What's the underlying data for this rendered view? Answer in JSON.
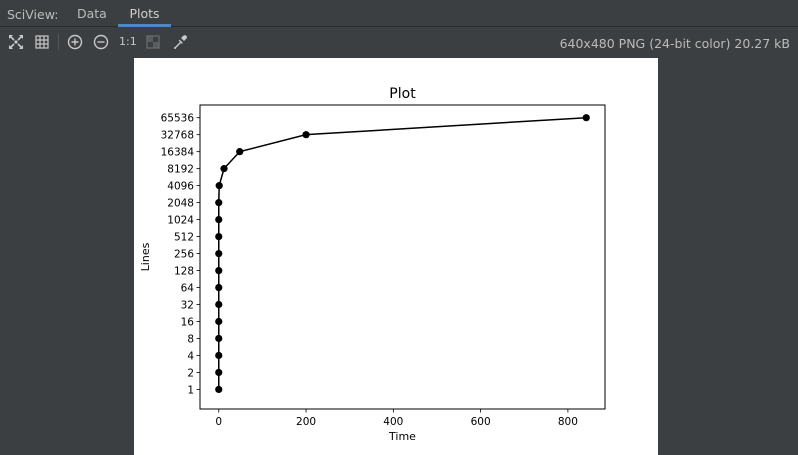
{
  "app": {
    "tool_title": "SciView:",
    "tabs": [
      {
        "label": "Data",
        "active": false
      },
      {
        "label": "Plots",
        "active": true
      }
    ]
  },
  "toolbar": {
    "icons": [
      "fit-icon",
      "grid-icon",
      "zoom-in-icon",
      "zoom-out-icon",
      "actual-size-icon",
      "chessboard-icon",
      "color-picker-icon"
    ],
    "actual_size_label": "1:1",
    "image_info": "640x480 PNG (24-bit color) 20.27 kB"
  },
  "colors": {
    "background": "#3c3f41",
    "active_tab_underline": "#4a88c7",
    "plot_line": "#000000"
  },
  "chart_data": {
    "type": "line",
    "title": "Plot",
    "xlabel": "Time",
    "ylabel": "Lines",
    "y_scale": "log2",
    "xlim": [
      -43,
      885
    ],
    "ylim": [
      0.45,
      110000
    ],
    "x_ticks": [
      0,
      200,
      400,
      600,
      800
    ],
    "y_ticks": [
      1,
      2,
      4,
      8,
      16,
      32,
      64,
      128,
      256,
      512,
      1024,
      2048,
      4096,
      8192,
      16384,
      32768,
      65536
    ],
    "grid": false,
    "series": [
      {
        "marker": "circle",
        "color": "#000000",
        "points": [
          {
            "x": 0,
            "y": 1
          },
          {
            "x": 0,
            "y": 2
          },
          {
            "x": 0,
            "y": 4
          },
          {
            "x": 0,
            "y": 8
          },
          {
            "x": 0,
            "y": 16
          },
          {
            "x": 0,
            "y": 32
          },
          {
            "x": 0,
            "y": 64
          },
          {
            "x": 0,
            "y": 128
          },
          {
            "x": 0,
            "y": 256
          },
          {
            "x": 0,
            "y": 512
          },
          {
            "x": 0,
            "y": 1024
          },
          {
            "x": 0,
            "y": 2048
          },
          {
            "x": 1,
            "y": 4096
          },
          {
            "x": 12,
            "y": 8192
          },
          {
            "x": 48,
            "y": 16384
          },
          {
            "x": 200,
            "y": 32768
          },
          {
            "x": 842,
            "y": 65536
          }
        ]
      }
    ]
  }
}
